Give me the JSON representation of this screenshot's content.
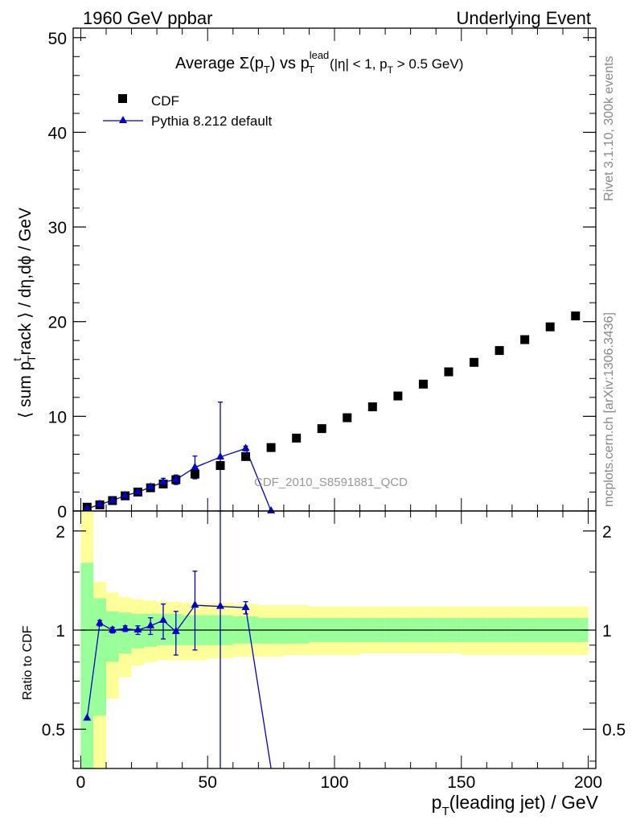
{
  "header": {
    "left": "1960 GeV ppbar",
    "right": "Underlying Event"
  },
  "side": {
    "rivet": "Rivet 3.1.10,  300k events",
    "mcplots": "mcplots.cern.ch [arXiv:1306.3436]"
  },
  "watermark": "CDF_2010_S8591881_QCD",
  "colors": {
    "mc": "#0000cc",
    "data": "#000000",
    "band_inner": "#99ff99",
    "band_outer": "#ffff99"
  },
  "chart_data": [
    {
      "type": "scatter",
      "title": "Average Σ(pT) vs pT lead (|η| < 1, pT > 0.5 GeV)",
      "title_parts": {
        "lead": "Average Σ(p",
        "sub_t1": "T",
        "mid": ") vs p",
        "sup_lead": "lead",
        "sub_t2": "T",
        "tail": " (|η| < 1, p",
        "sub_t3": "T",
        "end": " > 0.5 GeV)"
      },
      "ylabel_parts": {
        "a": "⟨ sum p",
        "sup_t": "t",
        "sub_t": "T",
        "b": "rack ⟩ / dη,dϕ / GeV"
      },
      "xlim": [
        -3,
        203
      ],
      "ylim": [
        0,
        51
      ],
      "y_ticks": [
        0,
        10,
        20,
        30,
        40,
        50
      ],
      "legend_position": "top-left",
      "series": [
        {
          "name": "CDF",
          "marker": "square",
          "x": [
            2.5,
            7.5,
            12.5,
            17.5,
            22.5,
            27.5,
            32.5,
            37.5,
            45,
            55,
            65,
            75,
            85,
            95,
            105,
            115,
            125,
            135,
            145,
            155,
            165,
            175,
            185,
            195
          ],
          "y": [
            0.4,
            0.65,
            1.1,
            1.6,
            2.0,
            2.45,
            2.85,
            3.3,
            3.9,
            4.8,
            5.75,
            6.7,
            7.7,
            8.7,
            9.85,
            11.0,
            12.15,
            13.4,
            14.7,
            15.7,
            16.95,
            18.1,
            19.45,
            20.6
          ]
        },
        {
          "name": "Pythia 8.212 default",
          "marker": "triangle",
          "x": [
            2.5,
            7.5,
            12.5,
            17.5,
            22.5,
            27.5,
            32.5,
            37.5,
            45,
            55,
            65,
            75
          ],
          "y": [
            0.22,
            0.7,
            1.1,
            1.62,
            2.0,
            2.52,
            3.05,
            3.3,
            4.6,
            5.7,
            6.6,
            0.0
          ],
          "yerr": [
            0.05,
            0.08,
            0.08,
            0.08,
            0.1,
            0.15,
            0.4,
            0.5,
            1.2,
            5.8,
            0.25,
            0.0
          ]
        }
      ]
    },
    {
      "type": "line",
      "ylabel": "Ratio to CDF",
      "xlabel_parts": {
        "a": "p",
        "sub": "T",
        "b": "(leading jet) / GeV"
      },
      "xlim": [
        -3,
        203
      ],
      "ylim": [
        0.38,
        2.3
      ],
      "y_ticks": [
        0.5,
        1,
        2
      ],
      "x_ticks": [
        0,
        50,
        100,
        150,
        200
      ],
      "bands": {
        "edges": [
          0,
          5,
          10,
          15,
          20,
          25,
          30,
          35,
          40,
          50,
          60,
          70,
          80,
          90,
          100,
          110,
          120,
          130,
          140,
          150,
          160,
          170,
          180,
          190,
          200
        ],
        "inner_lo": [
          0.3,
          0.55,
          0.8,
          0.85,
          0.88,
          0.89,
          0.9,
          0.9,
          0.9,
          0.9,
          0.91,
          0.91,
          0.91,
          0.92,
          0.92,
          0.92,
          0.92,
          0.92,
          0.92,
          0.92,
          0.92,
          0.92,
          0.92,
          0.92
        ],
        "inner_hi": [
          1.6,
          1.25,
          1.14,
          1.13,
          1.12,
          1.12,
          1.12,
          1.12,
          1.11,
          1.11,
          1.1,
          1.09,
          1.09,
          1.09,
          1.09,
          1.09,
          1.09,
          1.09,
          1.09,
          1.09,
          1.09,
          1.09,
          1.09,
          1.09
        ],
        "outer_lo": [
          0.3,
          0.3,
          0.62,
          0.72,
          0.78,
          0.8,
          0.81,
          0.81,
          0.81,
          0.82,
          0.83,
          0.83,
          0.84,
          0.84,
          0.84,
          0.85,
          0.85,
          0.85,
          0.85,
          0.84,
          0.84,
          0.84,
          0.84,
          0.84
        ],
        "outer_hi": [
          2.3,
          1.4,
          1.3,
          1.26,
          1.24,
          1.23,
          1.22,
          1.22,
          1.21,
          1.21,
          1.2,
          1.19,
          1.19,
          1.18,
          1.18,
          1.18,
          1.18,
          1.18,
          1.18,
          1.18,
          1.18,
          1.18,
          1.18,
          1.18
        ]
      },
      "series": [
        {
          "name": "Pythia 8.212 default",
          "x": [
            2.5,
            7.5,
            12.5,
            17.5,
            22.5,
            27.5,
            32.5,
            37.5,
            45,
            55,
            65,
            75
          ],
          "y": [
            0.54,
            1.05,
            1.0,
            1.01,
            1.0,
            1.03,
            1.07,
            0.99,
            1.19,
            1.18,
            1.17,
            0.0
          ],
          "yerr": [
            0.0,
            0.02,
            0.02,
            0.02,
            0.03,
            0.06,
            0.13,
            0.15,
            0.32,
            1.2,
            0.05,
            0.0
          ]
        }
      ]
    }
  ]
}
